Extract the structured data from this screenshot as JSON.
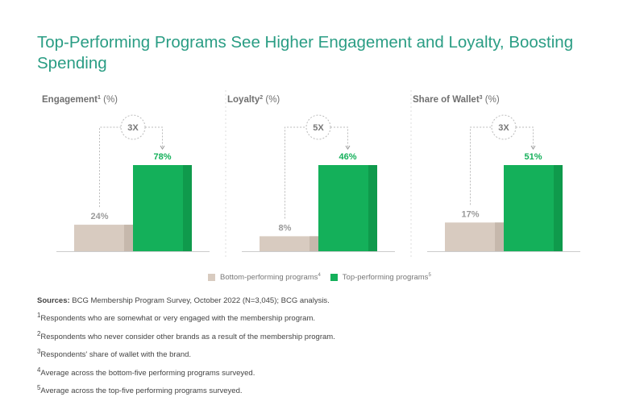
{
  "title": "Top-Performing Programs See Higher Engagement and Loyalty, Boosting Spending",
  "chart_data": [
    {
      "type": "bar",
      "title": "Engagement",
      "title_superscript": "1",
      "unit_label": "(%)",
      "categories": [
        "Bottom-performing programs",
        "Top-performing programs"
      ],
      "values": [
        24,
        78
      ],
      "labels": [
        "24%",
        "78%"
      ],
      "multiplier": "3X"
    },
    {
      "type": "bar",
      "title": "Loyalty",
      "title_superscript": "2",
      "unit_label": "(%)",
      "categories": [
        "Bottom-performing programs",
        "Top-performing programs"
      ],
      "values": [
        8,
        46
      ],
      "labels": [
        "8%",
        "46%"
      ],
      "multiplier": "5X"
    },
    {
      "type": "bar",
      "title": "Share of Wallet",
      "title_superscript": "3",
      "unit_label": "(%)",
      "categories": [
        "Bottom-performing programs",
        "Top-performing programs"
      ],
      "values": [
        17,
        51
      ],
      "labels": [
        "17%",
        "51%"
      ],
      "multiplier": "3X"
    }
  ],
  "legend": [
    {
      "label": "Bottom-performing programs",
      "sup": "4",
      "color": "#d8cbc0"
    },
    {
      "label": "Top-performing programs",
      "sup": "5",
      "color": "#14b05a"
    }
  ],
  "colors": {
    "bottom": "#d8cbc0",
    "bottom_shade": "#c6b8ac",
    "top": "#14b05a",
    "top_shade": "#0f9a4c",
    "top_label": "#14b05a",
    "bottom_label": "#9a9a9a"
  },
  "notes": {
    "sources_label": "Sources:",
    "sources_text": " BCG Membership Program Survey, October 2022 (N=3,045); BCG analysis.",
    "items": [
      {
        "sup": "1",
        "text": "Respondents who are somewhat or very engaged with the membership program."
      },
      {
        "sup": "2",
        "text": "Respondents who never consider other brands as a result of the membership program."
      },
      {
        "sup": "3",
        "text": "Respondents' share of wallet with the brand."
      },
      {
        "sup": "4",
        "text": "Average across the bottom-five performing programs surveyed."
      },
      {
        "sup": "5",
        "text": "Average across the top-five performing programs surveyed."
      }
    ]
  }
}
